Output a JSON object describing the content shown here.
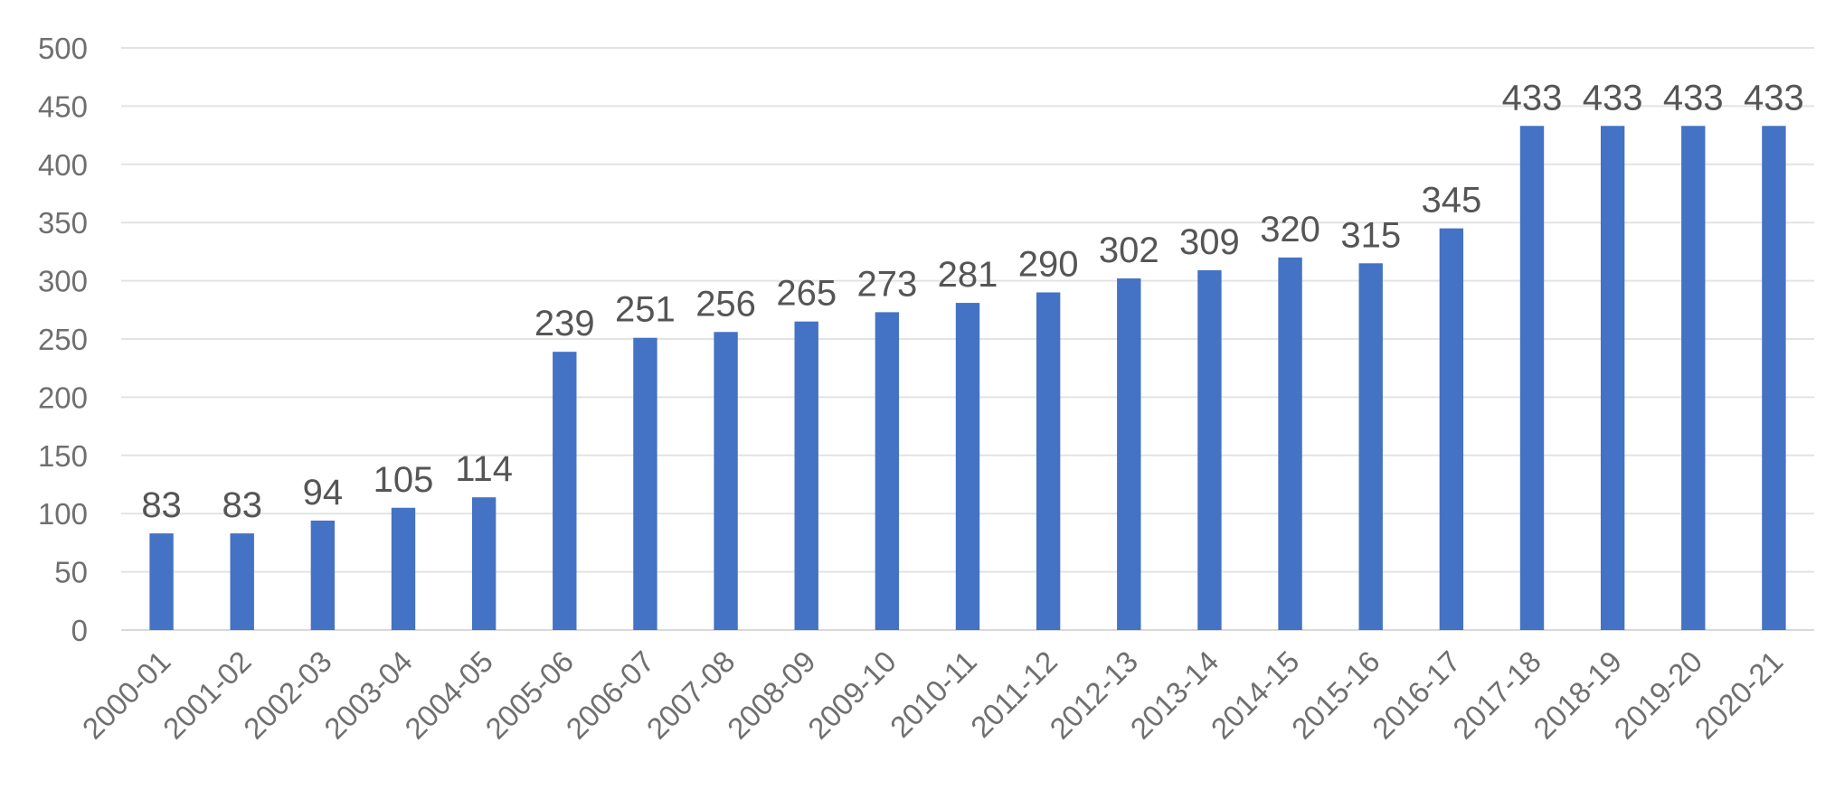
{
  "chart_data": {
    "type": "bar",
    "title": "",
    "xlabel": "",
    "ylabel": "",
    "categories": [
      "2000-01",
      "2001-02",
      "2002-03",
      "2003-04",
      "2004-05",
      "2005-06",
      "2006-07",
      "2007-08",
      "2008-09",
      "2009-10",
      "2010-11",
      "2011-12",
      "2012-13",
      "2013-14",
      "2014-15",
      "2015-16",
      "2016-17",
      "2017-18",
      "2018-19",
      "2019-20",
      "2020-21"
    ],
    "values": [
      83,
      83,
      94,
      105,
      114,
      239,
      251,
      256,
      265,
      273,
      281,
      290,
      302,
      309,
      320,
      315,
      345,
      433,
      433,
      433,
      433
    ],
    "data_labels": [
      "83",
      "83",
      "94",
      "105",
      "114",
      "239",
      "251",
      "256",
      "265",
      "273",
      "281",
      "290",
      "302",
      "309",
      "320",
      "315",
      "345",
      "433",
      "433",
      "433",
      "433"
    ],
    "ylim": [
      0,
      500
    ],
    "y_ticks": [
      0,
      50,
      100,
      150,
      200,
      250,
      300,
      350,
      400,
      450,
      500
    ],
    "y_tick_labels": [
      "0",
      "50",
      "100",
      "150",
      "200",
      "250",
      "300",
      "350",
      "400",
      "450",
      "500"
    ],
    "grid": true,
    "legend": "none",
    "x_tick_rotation": "-45",
    "colors": {
      "bar": "#4472C4",
      "grid": "#E3E3E3",
      "text": "#6F6F6F"
    }
  }
}
